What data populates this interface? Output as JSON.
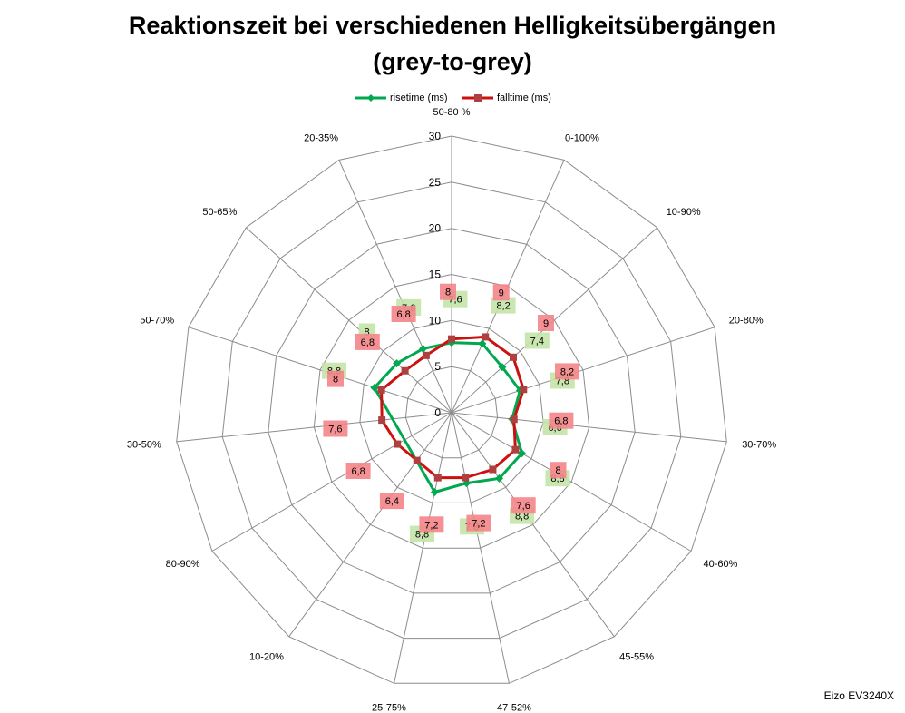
{
  "chart_data": {
    "type": "radar",
    "title_line1": "Reaktionszeit bei verschiedenen Helligkeitsübergängen",
    "title_line2": "(grey-to-grey)",
    "categories": [
      "50-80 %",
      "0-100%",
      "10-90%",
      "20-80%",
      "30-70%",
      "40-60%",
      "45-55%",
      "47-52%",
      "25-75%",
      "10-20%",
      "80-90%",
      "30-50%",
      "50-70%",
      "50-65%",
      "20-35%"
    ],
    "rmax": 30,
    "ticks": [
      0,
      5,
      10,
      15,
      20,
      25,
      30
    ],
    "series": [
      {
        "name": "risetime (ms)",
        "color": "#00a94f",
        "label_bg": "#c4e3a8",
        "marker": "diamond",
        "values": [
          7.6,
          8.2,
          7.4,
          7.8,
          6.6,
          8.8,
          8.8,
          7.8,
          8.8,
          null,
          null,
          null,
          8.8,
          8,
          7.6
        ],
        "labels": [
          "7,6",
          "8,2",
          "7,4",
          "7,8",
          "6,6",
          "8,8",
          "8,8",
          "7,8",
          "8,8",
          "",
          "",
          "",
          "8,8",
          "8",
          "7,6"
        ]
      },
      {
        "name": "falltime (ms)",
        "color": "#cc1111",
        "label_bg": "#f4858a",
        "marker": "square",
        "values": [
          8,
          9,
          9,
          8.2,
          6.8,
          8,
          7.6,
          7.2,
          7.2,
          6.4,
          6.8,
          7.6,
          8,
          6.8,
          6.8
        ],
        "labels": [
          "8",
          "9",
          "9",
          "8,2",
          "6,8",
          "8",
          "7,6",
          "7,2",
          "7,2",
          "6,4",
          "6,8",
          "7,6",
          "8",
          "6,8",
          "6,8"
        ]
      }
    ],
    "legend": "top",
    "annotation": "Eizo EV3240X"
  }
}
